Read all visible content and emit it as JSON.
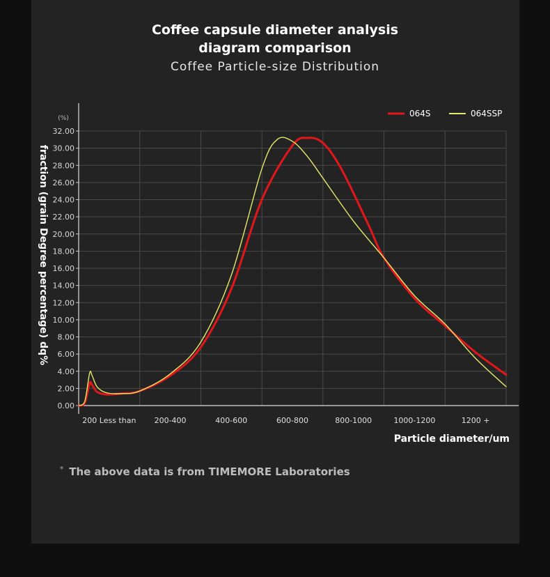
{
  "header": {
    "title_line1": "Coffee capsule diameter analysis",
    "title_line2": "diagram comparison",
    "subtitle": "Coffee Particle-size Distribution"
  },
  "footer": {
    "mark": "*",
    "note": "The above data is from TIMEMORE Laboratories"
  },
  "chart_data": {
    "type": "line",
    "title": "Coffee Particle-size Distribution",
    "ylabel": "fraction (grain Degree percentage) dq%",
    "yunit": "(%)",
    "xlabel": "Particle diameter/um",
    "ylim": [
      0,
      32
    ],
    "yticks": [
      "0.00",
      "2.00",
      "4.00",
      "6.00",
      "8.00",
      "10.00",
      "12.00",
      "14.00",
      "16.00",
      "18.00",
      "20.00",
      "22.00",
      "24.00",
      "26.00",
      "28.00",
      "30.00",
      "32.00"
    ],
    "categories": [
      "200 Less than",
      "200-400",
      "400-600",
      "600-800",
      "800-1000",
      "1000-1200",
      "1200 +"
    ],
    "grid": true,
    "legend_position": "top-right",
    "x_domain": [
      0,
      7
    ],
    "series": [
      {
        "name": "064S",
        "color": "#e3161b",
        "x": [
          0.0,
          0.1,
          0.18,
          0.22,
          0.3,
          0.45,
          0.7,
          1.0,
          1.5,
          2.0,
          2.5,
          3.0,
          3.5,
          3.75,
          4.0,
          4.3,
          4.75,
          5.0,
          5.5,
          6.0,
          6.5,
          7.0
        ],
        "values": [
          0.0,
          0.3,
          2.6,
          2.4,
          1.6,
          1.3,
          1.4,
          1.7,
          3.5,
          6.8,
          13.6,
          24.0,
          30.3,
          31.2,
          30.6,
          27.6,
          21.0,
          17.2,
          12.5,
          9.3,
          6.2,
          3.6
        ]
      },
      {
        "name": "064SSP",
        "color": "#e5e86a",
        "x": [
          0.0,
          0.1,
          0.18,
          0.22,
          0.3,
          0.45,
          0.7,
          1.0,
          1.5,
          2.0,
          2.5,
          3.0,
          3.25,
          3.5,
          3.75,
          4.0,
          4.5,
          5.0,
          5.5,
          6.0,
          6.5,
          7.0
        ],
        "values": [
          0.0,
          0.5,
          3.8,
          3.5,
          2.2,
          1.5,
          1.4,
          1.7,
          3.7,
          7.4,
          15.2,
          27.6,
          31.0,
          30.8,
          29.0,
          26.5,
          21.5,
          17.2,
          12.8,
          9.5,
          5.5,
          2.2
        ]
      }
    ]
  }
}
